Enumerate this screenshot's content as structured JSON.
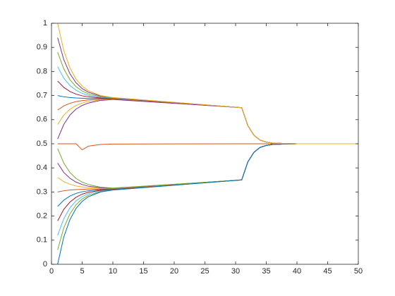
{
  "chart_data": {
    "type": "line",
    "x": [
      1,
      2,
      3,
      4,
      5,
      6,
      8,
      10,
      31,
      32,
      33,
      34,
      35,
      36,
      38,
      40,
      50
    ],
    "xlim": [
      0,
      50
    ],
    "xticks": [
      0,
      5,
      10,
      15,
      20,
      25,
      30,
      35,
      40,
      45,
      50
    ],
    "ylim": [
      0,
      1
    ],
    "yticks": [
      0,
      0.1,
      0.2,
      0.3,
      0.4,
      0.5,
      0.6,
      0.7,
      0.8,
      0.9,
      1
    ],
    "series": [
      {
        "color": "#7E2F8E",
        "values": [
          0.94,
          0.849,
          0.791,
          0.753,
          0.729,
          0.714,
          0.698,
          0.691,
          0.65,
          0.575,
          0.535,
          0.515,
          0.507,
          0.503,
          0.501,
          0.5,
          0.5
        ]
      },
      {
        "color": "#77AC30",
        "values": [
          0.88,
          0.811,
          0.766,
          0.737,
          0.719,
          0.707,
          0.695,
          0.69,
          0.65,
          0.575,
          0.535,
          0.515,
          0.507,
          0.503,
          0.501,
          0.5,
          0.5
        ]
      },
      {
        "color": "#4DBEEE",
        "values": [
          0.82,
          0.772,
          0.742,
          0.722,
          0.709,
          0.701,
          0.693,
          0.689,
          0.65,
          0.575,
          0.535,
          0.515,
          0.507,
          0.503,
          0.501,
          0.5,
          0.5
        ]
      },
      {
        "color": "#A2142F",
        "values": [
          0.76,
          0.734,
          0.717,
          0.706,
          0.699,
          0.695,
          0.69,
          0.688,
          0.65,
          0.575,
          0.535,
          0.515,
          0.507,
          0.503,
          0.501,
          0.5,
          0.5
        ]
      },
      {
        "color": "#0072BD",
        "values": [
          0.7,
          0.695,
          0.692,
          0.69,
          0.689,
          0.688,
          0.688,
          0.687,
          0.65,
          0.575,
          0.535,
          0.515,
          0.507,
          0.503,
          0.501,
          0.5,
          0.5
        ]
      },
      {
        "color": "#D95319",
        "values": [
          0.64,
          0.657,
          0.668,
          0.675,
          0.679,
          0.682,
          0.685,
          0.686,
          0.65,
          0.575,
          0.535,
          0.515,
          0.507,
          0.503,
          0.501,
          0.5,
          0.5
        ]
      },
      {
        "color": "#EDB120",
        "values": [
          0.58,
          0.619,
          0.643,
          0.659,
          0.669,
          0.676,
          0.682,
          0.685,
          0.65,
          0.575,
          0.535,
          0.515,
          0.507,
          0.503,
          0.501,
          0.5,
          0.5
        ]
      },
      {
        "color": "#7E2F8E",
        "values": [
          0.52,
          0.58,
          0.619,
          0.644,
          0.659,
          0.669,
          0.68,
          0.684,
          0.65,
          0.575,
          0.535,
          0.515,
          0.507,
          0.503,
          0.501,
          0.5,
          0.5
        ]
      },
      {
        "color": "#77AC30",
        "values": [
          0.06,
          0.151,
          0.209,
          0.247,
          0.271,
          0.286,
          0.302,
          0.309,
          0.35,
          0.425,
          0.465,
          0.485,
          0.493,
          0.497,
          0.499,
          0.5,
          0.5
        ]
      },
      {
        "color": "#4DBEEE",
        "values": [
          0.12,
          0.189,
          0.234,
          0.263,
          0.281,
          0.293,
          0.305,
          0.31,
          0.35,
          0.425,
          0.465,
          0.485,
          0.493,
          0.497,
          0.499,
          0.5,
          0.5
        ]
      },
      {
        "color": "#A2142F",
        "values": [
          0.18,
          0.228,
          0.258,
          0.278,
          0.291,
          0.299,
          0.307,
          0.311,
          0.35,
          0.425,
          0.465,
          0.485,
          0.493,
          0.497,
          0.499,
          0.5,
          0.5
        ]
      },
      {
        "color": "#0072BD",
        "values": [
          0.24,
          0.266,
          0.283,
          0.294,
          0.301,
          0.305,
          0.31,
          0.312,
          0.35,
          0.425,
          0.465,
          0.485,
          0.493,
          0.497,
          0.499,
          0.5,
          0.5
        ]
      },
      {
        "color": "#D95319",
        "values": [
          0.3,
          0.305,
          0.308,
          0.31,
          0.311,
          0.312,
          0.312,
          0.313,
          0.35,
          0.425,
          0.465,
          0.485,
          0.493,
          0.497,
          0.499,
          0.5,
          0.5
        ]
      },
      {
        "color": "#EDB120",
        "values": [
          0.36,
          0.343,
          0.332,
          0.325,
          0.321,
          0.318,
          0.315,
          0.314,
          0.35,
          0.425,
          0.465,
          0.485,
          0.493,
          0.497,
          0.499,
          0.5,
          0.5
        ]
      },
      {
        "color": "#7E2F8E",
        "values": [
          0.42,
          0.381,
          0.357,
          0.341,
          0.331,
          0.324,
          0.318,
          0.315,
          0.35,
          0.425,
          0.465,
          0.485,
          0.493,
          0.497,
          0.499,
          0.5,
          0.5
        ]
      },
      {
        "color": "#77AC30",
        "values": [
          0.48,
          0.42,
          0.381,
          0.356,
          0.341,
          0.331,
          0.32,
          0.316,
          0.35,
          0.425,
          0.465,
          0.485,
          0.493,
          0.497,
          0.499,
          0.5,
          0.5
        ]
      },
      {
        "color": "#0072BD",
        "values": [
          0,
          0.113,
          0.185,
          0.232,
          0.261,
          0.28,
          0.3,
          0.308,
          0.35,
          0.425,
          0.465,
          0.485,
          0.493,
          0.497,
          0.499,
          0.5,
          0.5
        ]
      },
      {
        "color": "#D95319",
        "values": [
          0.5,
          0.5,
          0.5,
          0.5,
          0.475,
          0.49,
          0.497,
          0.499,
          0.5,
          0.5,
          0.5,
          0.5,
          0.5,
          0.5,
          0.5,
          0.5,
          0.5
        ]
      },
      {
        "color": "#EDB120",
        "values": [
          1,
          0.887,
          0.815,
          0.768,
          0.739,
          0.72,
          0.7,
          0.692,
          0.65,
          0.575,
          0.535,
          0.515,
          0.507,
          0.503,
          0.501,
          0.5,
          0.5
        ]
      }
    ]
  }
}
